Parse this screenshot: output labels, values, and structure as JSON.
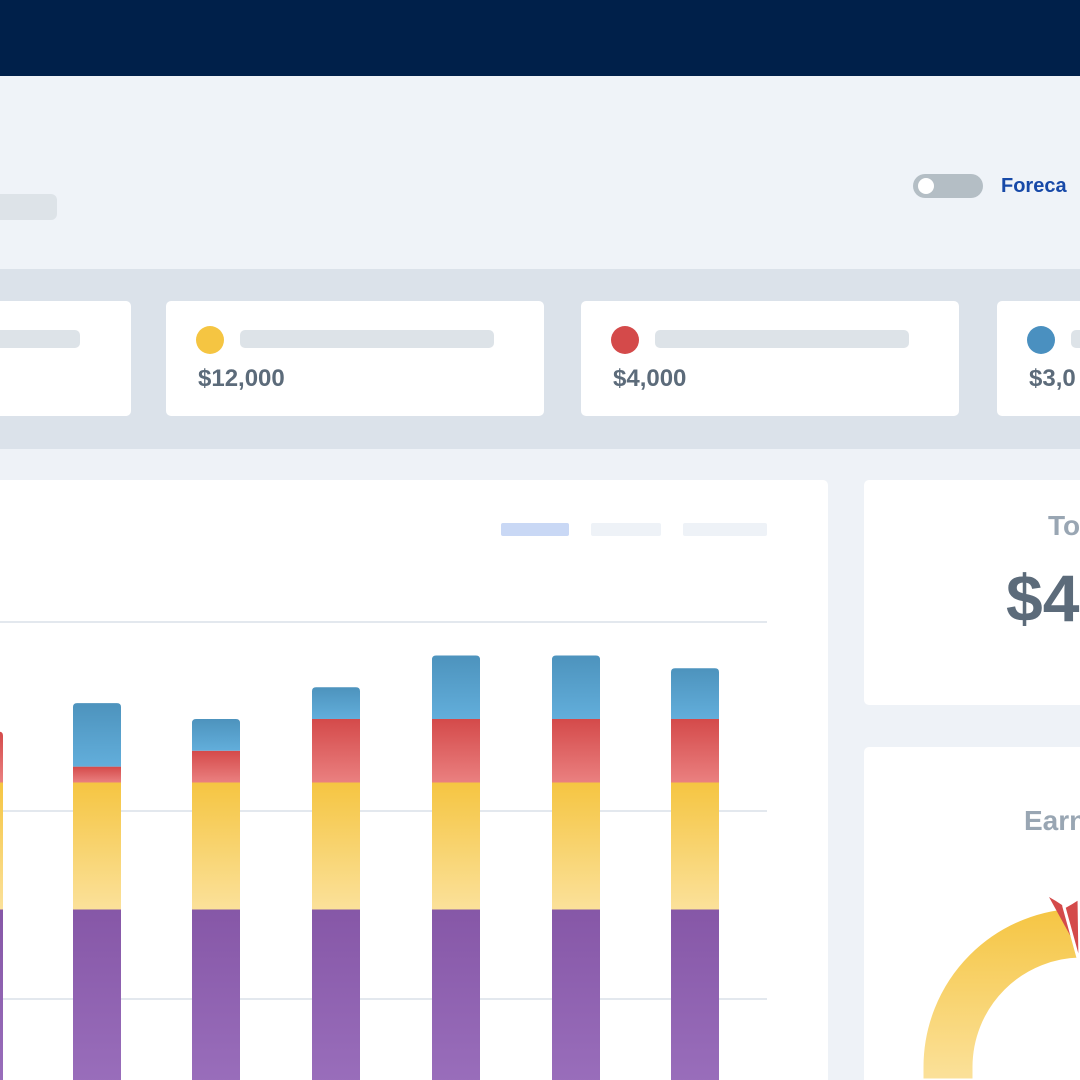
{
  "header": {
    "forecast_label": "Foreca"
  },
  "summary": {
    "cards": [
      {
        "value": "",
        "color": "#cccccc"
      },
      {
        "value": "$12,000",
        "color": "#f5c542"
      },
      {
        "value": "$4,000",
        "color": "#d44a4a"
      },
      {
        "value": "$3,0",
        "color": "#4a90c0"
      }
    ]
  },
  "total": {
    "title": "To",
    "value": "$4"
  },
  "earnings": {
    "title": "Earn"
  },
  "colors": {
    "topbar": "#00204a",
    "purple": "#8a5aaa",
    "yellow": "#f5c542",
    "red": "#d44a4a",
    "blue": "#4a90c0"
  },
  "chart_data": {
    "type": "bar",
    "stacked": true,
    "categories": [
      "",
      "",
      "",
      "",
      "",
      "",
      ""
    ],
    "series": [
      {
        "values": [
          3.0,
          3.0,
          3.0,
          3.0,
          3.0,
          3.0,
          3.0
        ]
      },
      {
        "values": [
          2.0,
          2.0,
          2.0,
          2.0,
          2.0,
          2.0,
          2.0
        ]
      },
      {
        "values": [
          0.8,
          0.25,
          0.5,
          1.0,
          1.0,
          1.0,
          1.0
        ]
      },
      {
        "values": [
          0,
          1.0,
          0.5,
          0.5,
          1.0,
          1.0,
          0.8
        ]
      }
    ],
    "grid": true,
    "legend": "none"
  }
}
